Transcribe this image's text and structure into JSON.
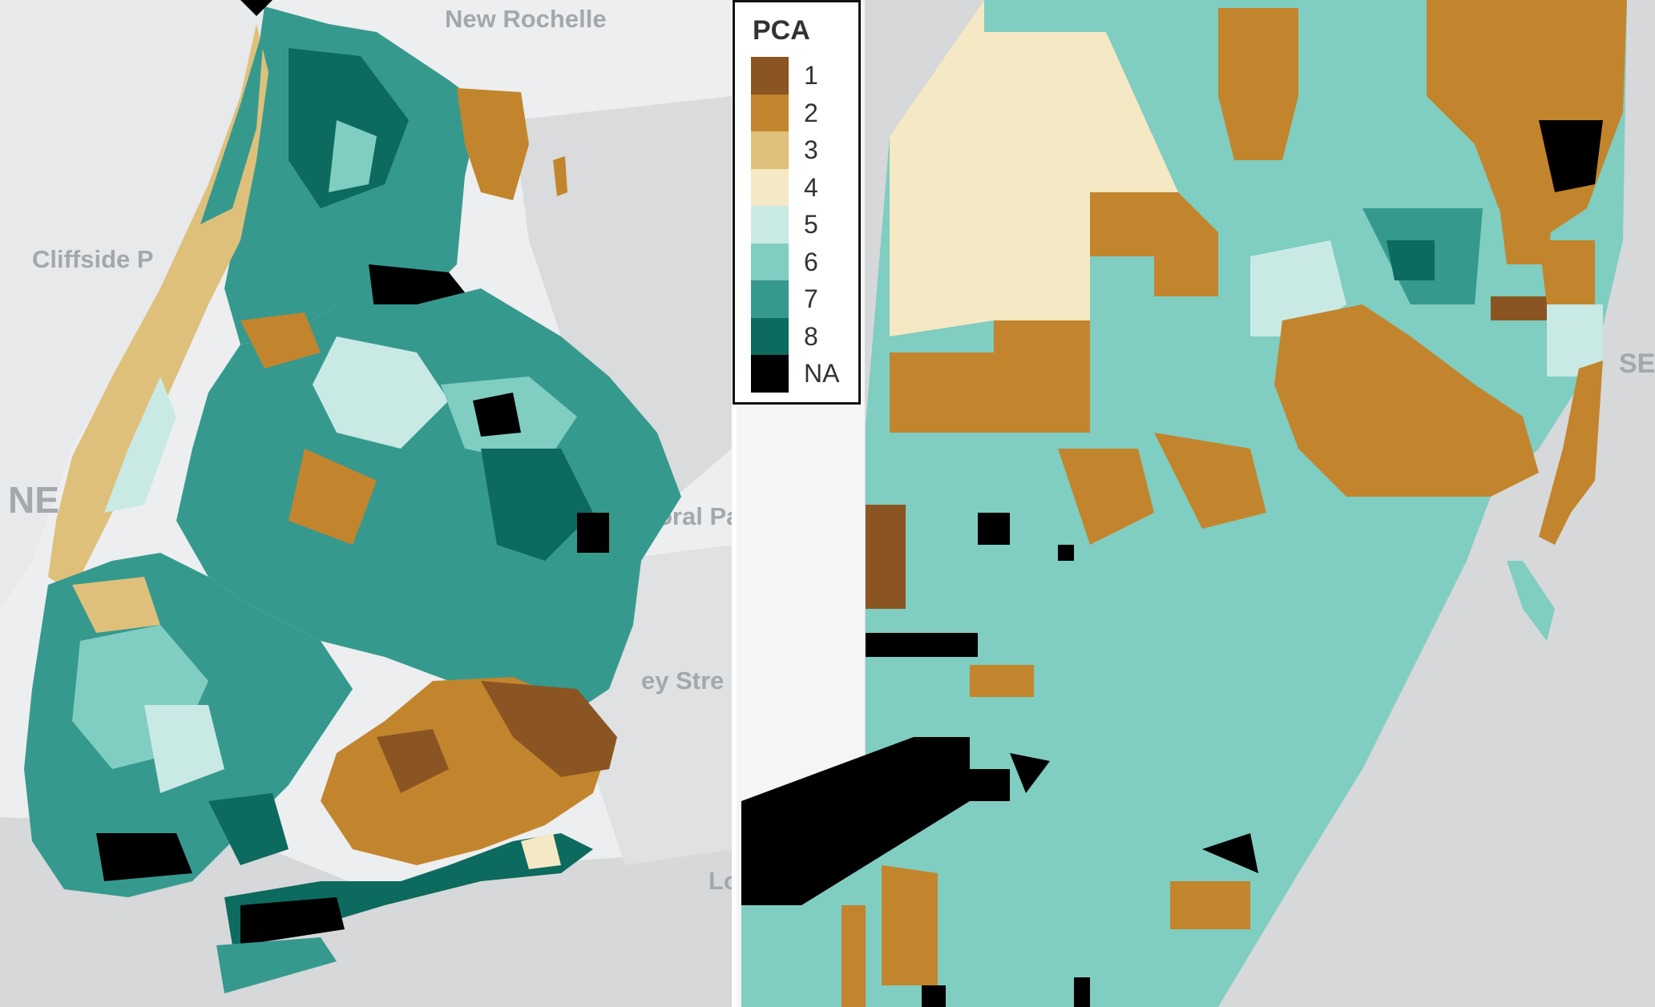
{
  "legend": {
    "title": "PCA",
    "items": [
      {
        "label": "1",
        "color": "#8a5522"
      },
      {
        "label": "2",
        "color": "#c2852d"
      },
      {
        "label": "3",
        "color": "#dfc07a"
      },
      {
        "label": "4",
        "color": "#f5e8c4"
      },
      {
        "label": "5",
        "color": "#c9e9e5"
      },
      {
        "label": "6",
        "color": "#80cdc1"
      },
      {
        "label": "7",
        "color": "#36998e"
      },
      {
        "label": "8",
        "color": "#0d6a5e"
      },
      {
        "label": "NA",
        "color": "#000000"
      }
    ]
  },
  "basemap_labels": {
    "new_rochelle": "New Rochelle",
    "cliffside": "Cliffside P",
    "ne": "NE",
    "floral_park": "oral Pa",
    "valley_stream": "ey Stre",
    "lo": "Lo",
    "sea": "SEA"
  },
  "colors": {
    "water": "#d6d8da",
    "land": "#f0f1f2",
    "divider": "#ffffff"
  }
}
